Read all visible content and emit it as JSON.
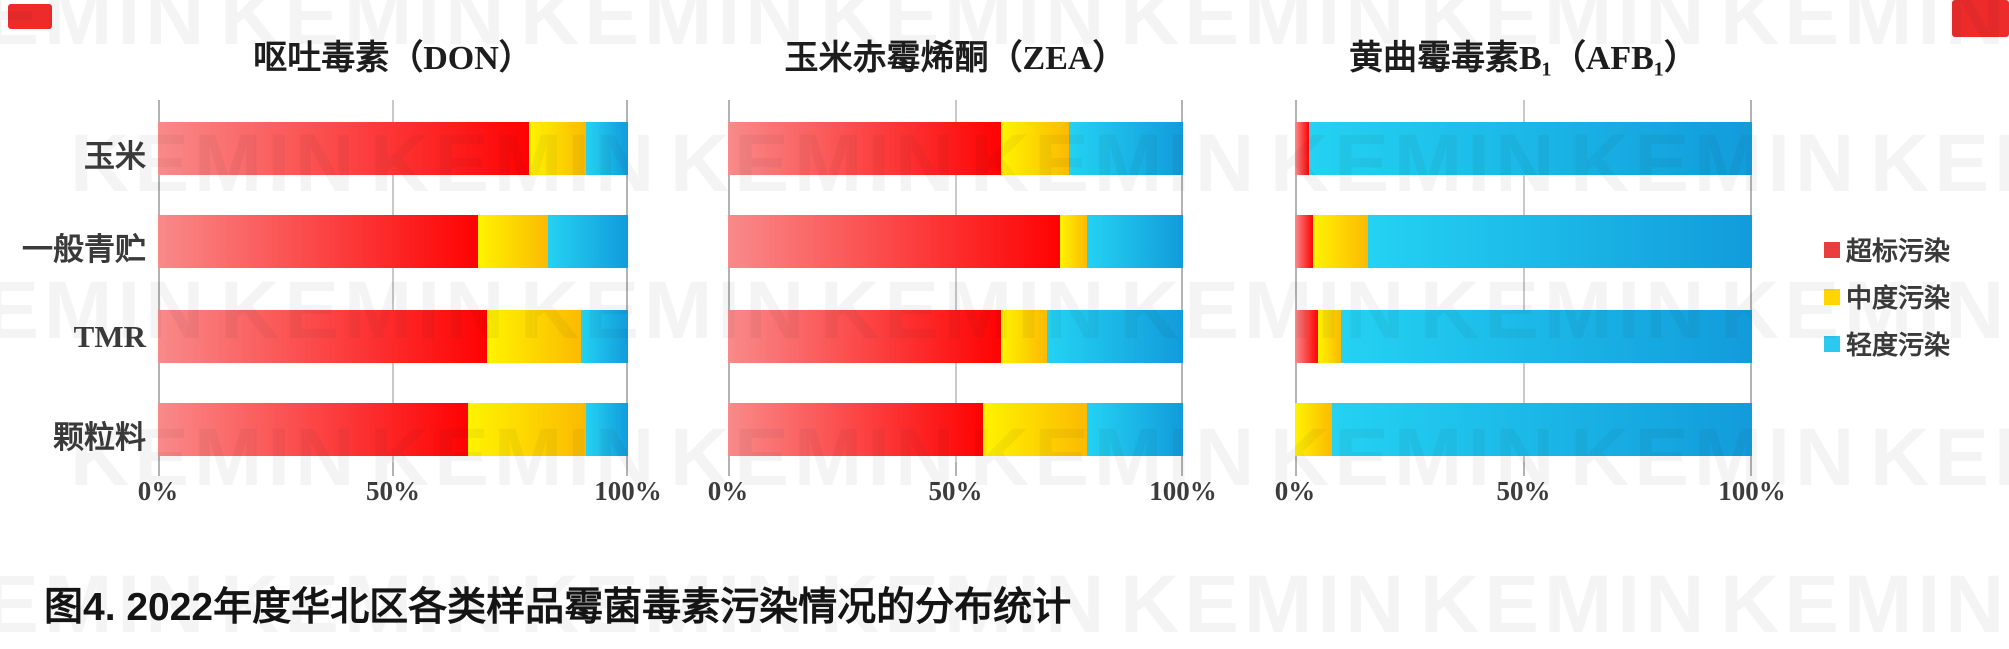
{
  "watermark": {
    "text": "KEMIN"
  },
  "caption": "图4. 2022年度华北区各类样品霉菌毒素污染情况的分布统计",
  "categories": [
    "玉米",
    "一般青贮",
    "TMR",
    "颗粒料"
  ],
  "legend": {
    "items": [
      {
        "label": "超标污染",
        "color": "#ea3e3e"
      },
      {
        "label": "中度污染",
        "color": "#ffd600"
      },
      {
        "label": "轻度污染",
        "color": "#2bc8f0"
      }
    ]
  },
  "colors": {
    "red_start": "#f98a8a",
    "red_end": "#fe0202",
    "yellow_start": "#fff300",
    "yellow_end": "#fbba02",
    "blue_start": "#24d2f2",
    "blue_end": "#129bdb"
  },
  "chart_data": [
    {
      "type": "bar",
      "stacked": true,
      "orientation": "horizontal",
      "title": "呕吐毒素（DON）",
      "categories": [
        "玉米",
        "一般青贮",
        "TMR",
        "颗粒料"
      ],
      "series": [
        {
          "name": "超标污染",
          "color_start": "#f98a8a",
          "color_end": "#fe0202",
          "values": [
            79,
            68,
            70,
            66
          ]
        },
        {
          "name": "中度污染",
          "color_start": "#fff300",
          "color_end": "#fbba02",
          "values": [
            12,
            15,
            20,
            25
          ]
        },
        {
          "name": "轻度污染",
          "color_start": "#24d2f2",
          "color_end": "#129bdb",
          "values": [
            9,
            17,
            10,
            9
          ]
        }
      ],
      "xlim": [
        0,
        100
      ],
      "xticks": [
        "0%",
        "50%",
        "100%"
      ],
      "grid": "vertical-50"
    },
    {
      "type": "bar",
      "stacked": true,
      "orientation": "horizontal",
      "title": "玉米赤霉烯酮（ZEA）",
      "categories": [
        "玉米",
        "一般青贮",
        "TMR",
        "颗粒料"
      ],
      "series": [
        {
          "name": "超标污染",
          "color_start": "#f98a8a",
          "color_end": "#fe0202",
          "values": [
            60,
            73,
            60,
            56
          ]
        },
        {
          "name": "中度污染",
          "color_start": "#fff300",
          "color_end": "#fbba02",
          "values": [
            15,
            6,
            10,
            23
          ]
        },
        {
          "name": "轻度污染",
          "color_start": "#24d2f2",
          "color_end": "#129bdb",
          "values": [
            25,
            21,
            30,
            21
          ]
        }
      ],
      "xlim": [
        0,
        100
      ],
      "xticks": [
        "0%",
        "50%",
        "100%"
      ],
      "grid": "vertical-50"
    },
    {
      "type": "bar",
      "stacked": true,
      "orientation": "horizontal",
      "title": "黄曲霉毒素B₁（AFB₁）",
      "categories": [
        "玉米",
        "一般青贮",
        "TMR",
        "颗粒料"
      ],
      "series": [
        {
          "name": "超标污染",
          "color_start": "#f98a8a",
          "color_end": "#fe0202",
          "values": [
            3,
            4,
            5,
            0
          ]
        },
        {
          "name": "中度污染",
          "color_start": "#fff300",
          "color_end": "#fbba02",
          "values": [
            0,
            12,
            5,
            8
          ]
        },
        {
          "name": "轻度污染",
          "color_start": "#24d2f2",
          "color_end": "#129bdb",
          "values": [
            97,
            84,
            90,
            92
          ]
        }
      ],
      "xlim": [
        0,
        100
      ],
      "xticks": [
        "0%",
        "50%",
        "100%"
      ],
      "grid": "vertical-50"
    }
  ]
}
